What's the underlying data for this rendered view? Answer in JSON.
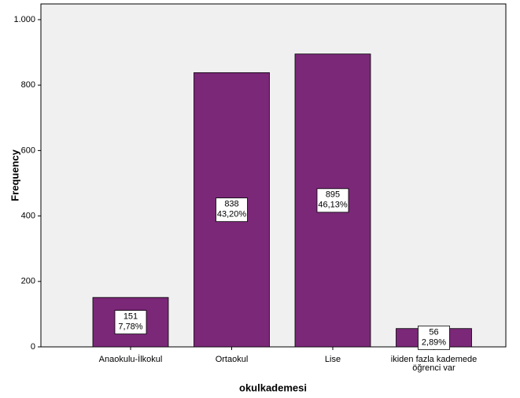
{
  "chart_data": {
    "type": "bar",
    "x_label": "okulkademesi",
    "y_label": "Frequency",
    "categories": [
      "Anaokulu-İlkokul",
      "Ortaokul",
      "Lise",
      "ikiden fazla kademede öğrenci var"
    ],
    "values": [
      151,
      838,
      895,
      56
    ],
    "percents": [
      7.78,
      43.2,
      46.13,
      2.89
    ],
    "percent_labels": [
      "7,78%",
      "43,20%",
      "46,13%",
      "2,89%"
    ],
    "color": "#7b2878",
    "ylim": [
      0,
      1048
    ],
    "yticks": [
      0,
      200,
      400,
      600,
      800,
      {
        "value": 1000,
        "label": "1.000"
      }
    ],
    "grid": false
  }
}
